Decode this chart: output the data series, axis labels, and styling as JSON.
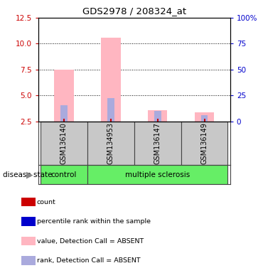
{
  "title": "GDS2978 / 208324_at",
  "samples": [
    "GSM136140",
    "GSM134953",
    "GSM136147",
    "GSM136149"
  ],
  "ylim_left": [
    2.5,
    12.5
  ],
  "ylim_right": [
    0,
    100
  ],
  "yticks_left": [
    2.5,
    5.0,
    7.5,
    10.0,
    12.5
  ],
  "yticks_right": [
    0,
    25,
    50,
    75,
    100
  ],
  "ytick_labels_right": [
    "0",
    "25",
    "50",
    "75",
    "100%"
  ],
  "bar_bottom": 2.5,
  "pink_bars": [
    7.5,
    10.6,
    3.6,
    3.35
  ],
  "blue_bars": [
    4.1,
    4.75,
    3.55,
    3.1
  ],
  "pink_color": "#FFB6C1",
  "blue_color": "#AAAADD",
  "red_color": "#CC0000",
  "blue_legend_color": "#0000CC",
  "left_tick_color": "#CC0000",
  "right_tick_color": "#0000CC",
  "sample_box_color": "#C8C8C8",
  "grid_lines": [
    5.0,
    7.5,
    10.0
  ],
  "legend_labels": [
    "count",
    "percentile rank within the sample",
    "value, Detection Call = ABSENT",
    "rank, Detection Call = ABSENT"
  ],
  "legend_colors": [
    "#CC0000",
    "#0000CC",
    "#FFB6C1",
    "#AAAADD"
  ],
  "group_label": "disease state",
  "group_control_idx": [
    0
  ],
  "group_ms_idx": [
    1,
    2,
    3
  ],
  "green_color": "#66EE66"
}
